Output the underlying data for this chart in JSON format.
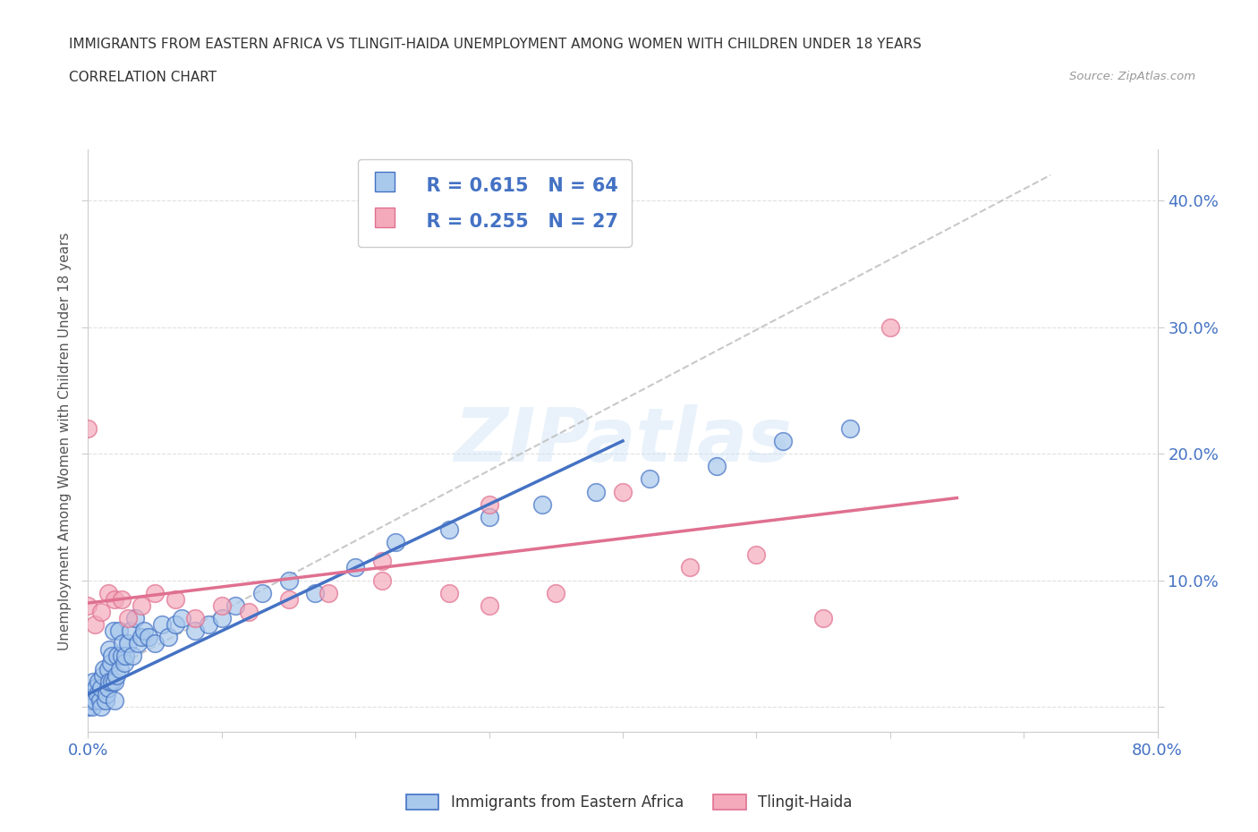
{
  "title_line1": "IMMIGRANTS FROM EASTERN AFRICA VS TLINGIT-HAIDA UNEMPLOYMENT AMONG WOMEN WITH CHILDREN UNDER 18 YEARS",
  "title_line2": "CORRELATION CHART",
  "source_text": "Source: ZipAtlas.com",
  "ylabel": "Unemployment Among Women with Children Under 18 years",
  "xlim": [
    0.0,
    0.8
  ],
  "ylim": [
    -0.02,
    0.44
  ],
  "xticks": [
    0.0,
    0.1,
    0.2,
    0.3,
    0.4,
    0.5,
    0.6,
    0.7,
    0.8
  ],
  "xticklabels": [
    "0.0%",
    "",
    "",
    "",
    "",
    "",
    "",
    "",
    "80.0%"
  ],
  "yticks": [
    0.0,
    0.1,
    0.2,
    0.3,
    0.4
  ],
  "yticklabels_right": [
    "",
    "10.0%",
    "20.0%",
    "30.0%",
    "40.0%"
  ],
  "blue_color": "#A8C8EC",
  "pink_color": "#F4AABB",
  "blue_line_color": "#4472C4",
  "pink_line_color": "#E07090",
  "trend_line_color": "#BBBBBB",
  "R_blue": 0.615,
  "N_blue": 64,
  "R_pink": 0.255,
  "N_pink": 27,
  "watermark": "ZIPatlas",
  "legend_label_blue": "Immigrants from Eastern Africa",
  "legend_label_pink": "Tlingit-Haida",
  "blue_scatter_x": [
    0.0,
    0.0,
    0.002,
    0.003,
    0.004,
    0.005,
    0.006,
    0.007,
    0.008,
    0.009,
    0.01,
    0.01,
    0.011,
    0.012,
    0.013,
    0.014,
    0.015,
    0.015,
    0.016,
    0.016,
    0.017,
    0.018,
    0.018,
    0.019,
    0.02,
    0.02,
    0.021,
    0.022,
    0.023,
    0.024,
    0.025,
    0.026,
    0.027,
    0.028,
    0.03,
    0.032,
    0.033,
    0.035,
    0.037,
    0.04,
    0.042,
    0.045,
    0.05,
    0.055,
    0.06,
    0.065,
    0.07,
    0.08,
    0.09,
    0.1,
    0.11,
    0.13,
    0.15,
    0.17,
    0.2,
    0.23,
    0.27,
    0.3,
    0.34,
    0.38,
    0.42,
    0.47,
    0.52,
    0.57
  ],
  "blue_scatter_y": [
    0.0,
    0.01,
    0.005,
    0.0,
    0.02,
    0.005,
    0.015,
    0.01,
    0.02,
    0.005,
    0.0,
    0.015,
    0.025,
    0.03,
    0.005,
    0.01,
    0.015,
    0.03,
    0.02,
    0.045,
    0.035,
    0.02,
    0.04,
    0.06,
    0.005,
    0.02,
    0.025,
    0.04,
    0.06,
    0.03,
    0.04,
    0.05,
    0.035,
    0.04,
    0.05,
    0.06,
    0.04,
    0.07,
    0.05,
    0.055,
    0.06,
    0.055,
    0.05,
    0.065,
    0.055,
    0.065,
    0.07,
    0.06,
    0.065,
    0.07,
    0.08,
    0.09,
    0.1,
    0.09,
    0.11,
    0.13,
    0.14,
    0.15,
    0.16,
    0.17,
    0.18,
    0.19,
    0.21,
    0.22
  ],
  "pink_scatter_x": [
    0.0,
    0.0,
    0.005,
    0.01,
    0.015,
    0.02,
    0.025,
    0.03,
    0.04,
    0.05,
    0.065,
    0.08,
    0.1,
    0.12,
    0.15,
    0.18,
    0.22,
    0.27,
    0.3,
    0.35,
    0.4,
    0.45,
    0.5,
    0.55,
    0.6,
    0.3,
    0.22
  ],
  "pink_scatter_y": [
    0.08,
    0.22,
    0.065,
    0.075,
    0.09,
    0.085,
    0.085,
    0.07,
    0.08,
    0.09,
    0.085,
    0.07,
    0.08,
    0.075,
    0.085,
    0.09,
    0.1,
    0.09,
    0.08,
    0.09,
    0.17,
    0.11,
    0.12,
    0.07,
    0.3,
    0.16,
    0.115
  ],
  "blue_trend_x": [
    0.0,
    0.4
  ],
  "blue_trend_y": [
    0.01,
    0.21
  ],
  "pink_trend_x": [
    0.0,
    0.65
  ],
  "pink_trend_y": [
    0.082,
    0.165
  ],
  "gray_trend_x": [
    0.0,
    0.72
  ],
  "gray_trend_y": [
    0.02,
    0.42
  ]
}
